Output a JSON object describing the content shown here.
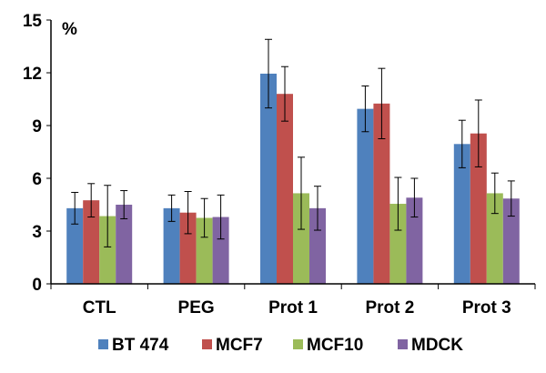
{
  "chart_data": {
    "type": "bar",
    "ylabel_unit": "%",
    "ylim": [
      0,
      15
    ],
    "yticks": [
      0,
      3,
      6,
      9,
      12,
      15
    ],
    "grid": false,
    "legend_position": "bottom",
    "categories": [
      "CTL",
      "PEG",
      "Prot 1",
      "Prot 2",
      "Prot 3"
    ],
    "series": [
      {
        "name": "BT 474",
        "color": "#4F81BD",
        "values": [
          4.3,
          4.3,
          11.95,
          9.95,
          7.95
        ],
        "errors": [
          0.9,
          0.75,
          1.95,
          1.3,
          1.35
        ]
      },
      {
        "name": "MCF7",
        "color": "#C0504D",
        "values": [
          4.75,
          4.05,
          10.8,
          10.25,
          8.55
        ],
        "errors": [
          0.95,
          1.2,
          1.55,
          2.0,
          1.9
        ]
      },
      {
        "name": "MCF10",
        "color": "#9BBB59",
        "values": [
          3.85,
          3.75,
          5.15,
          4.55,
          5.15
        ],
        "errors": [
          1.75,
          1.1,
          2.05,
          1.5,
          1.15
        ]
      },
      {
        "name": "MDCK",
        "color": "#8064A2",
        "values": [
          4.5,
          3.8,
          4.3,
          4.9,
          4.85
        ],
        "errors": [
          0.8,
          1.25,
          1.25,
          1.1,
          1.0
        ]
      }
    ]
  }
}
